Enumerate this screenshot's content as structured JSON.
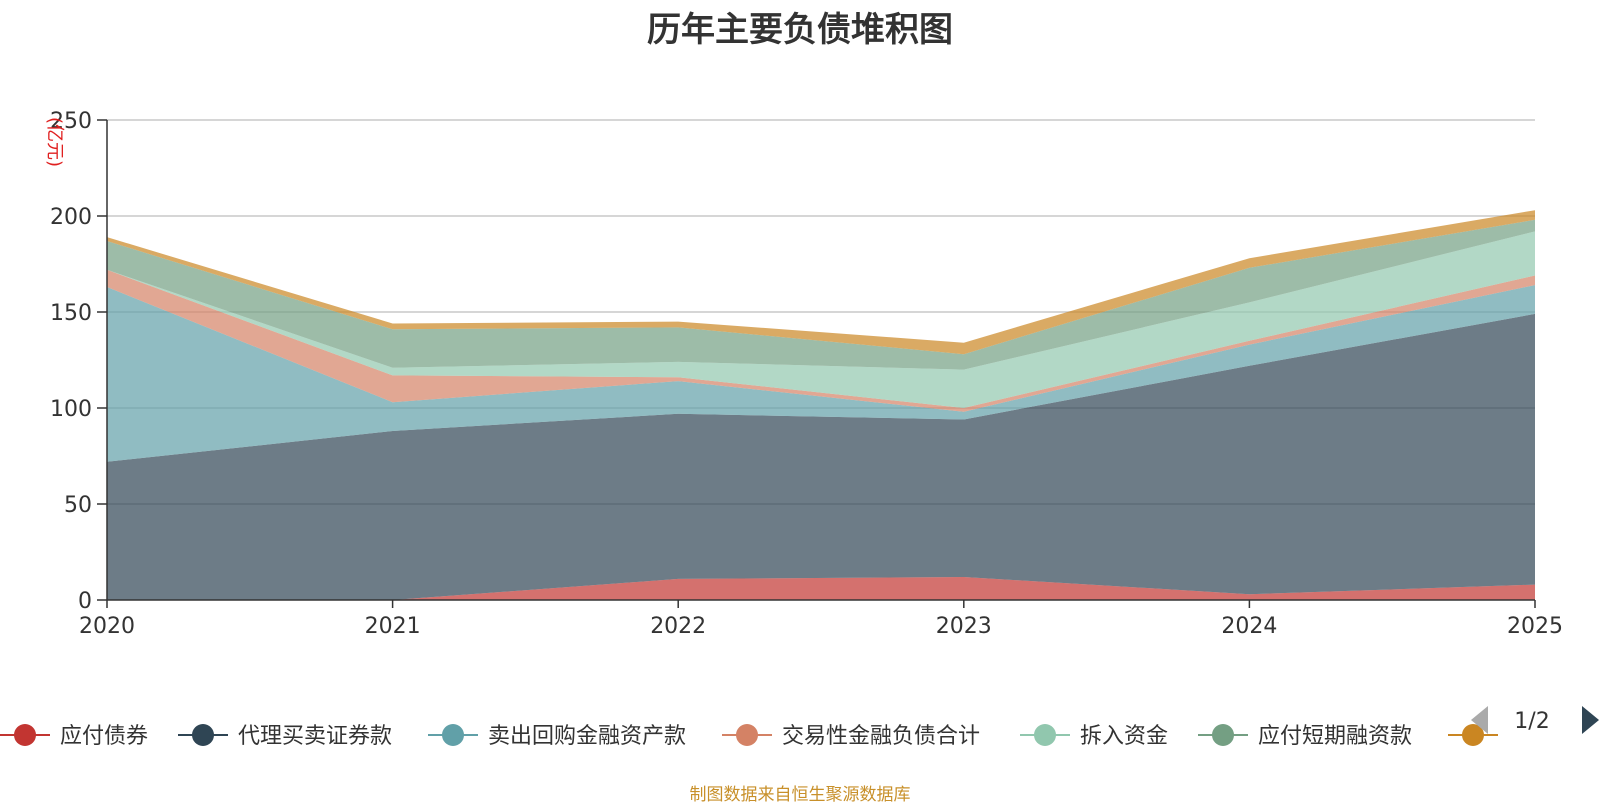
{
  "chart_data": {
    "type": "area",
    "stacked": true,
    "title": "历年主要负债堆积图",
    "ylabel": "(亿元)",
    "ylim": [
      0,
      250
    ],
    "yticks": [
      0,
      50,
      100,
      150,
      200,
      250
    ],
    "grid": true,
    "categories": [
      "2020",
      "2021",
      "2022",
      "2023",
      "2024",
      "2025"
    ],
    "series": [
      {
        "name": "应付债券",
        "color": "#c23531",
        "values": [
          0,
          0,
          11,
          12,
          3,
          8
        ]
      },
      {
        "name": "代理买卖证券款",
        "color": "#2f4554",
        "values": [
          72,
          88,
          86,
          82,
          119,
          141
        ]
      },
      {
        "name": "卖出回购金融资产款",
        "color": "#61a0a8",
        "values": [
          91,
          15,
          17,
          4,
          11,
          15
        ]
      },
      {
        "name": "交易性金融负债合计",
        "color": "#d48265",
        "values": [
          9,
          14,
          2,
          2,
          2,
          5
        ]
      },
      {
        "name": "拆入资金",
        "color": "#91c7ae",
        "values": [
          0,
          4,
          8,
          20,
          20,
          23
        ]
      },
      {
        "name": "应付短期融资款",
        "color": "#749f83",
        "values": [
          15,
          20,
          18,
          8,
          18,
          6
        ]
      },
      {
        "name": "",
        "color": "#ca8622",
        "values": [
          2,
          3,
          3,
          6,
          5,
          5
        ]
      }
    ],
    "legend_position": "bottom"
  },
  "legend": {
    "page": "1/2"
  },
  "footer": {
    "source": "制图数据来自恒生聚源数据库"
  }
}
